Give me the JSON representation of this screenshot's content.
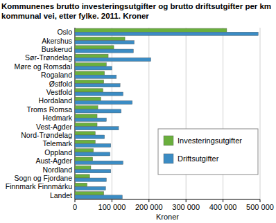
{
  "chart_data": {
    "type": "bar",
    "orientation": "horizontal",
    "title": "Kommunenes brutto investeringsutgifter og brutto driftsutgifter per km kommunal vei, etter fylke. 2011. Kroner",
    "x_label": "Kroner",
    "categories": [
      "Oslo",
      "Akershus",
      "Buskerud",
      "Sør-Trøndelag",
      "Møre og Romsdal",
      "Rogaland",
      "Østfold",
      "Vestfold",
      "Hordaland",
      "Troms Romsa",
      "Hedmark",
      "Vest-Agder",
      "Nord-Trøndelag",
      "Telemark",
      "Oppland",
      "Aust-Agder",
      "Nordland",
      "Sogn og Fjordane",
      "Finnmark Finnmárku",
      "Landet"
    ],
    "series": [
      {
        "name": "Investeringsutgifter",
        "color": "#6aaf3d",
        "values": [
          410000,
          135000,
          105000,
          90000,
          85000,
          80000,
          78000,
          76000,
          70000,
          62000,
          60000,
          60000,
          55000,
          55000,
          50000,
          48000,
          43000,
          40000,
          33000,
          78000
        ]
      },
      {
        "name": "Driftsutgifter",
        "color": "#3b8cc4",
        "values": [
          495000,
          160000,
          158000,
          205000,
          100000,
          112000,
          122000,
          130000,
          155000,
          125000,
          85000,
          118000,
          80000,
          97000,
          95000,
          130000,
          97000,
          85000,
          83000,
          128000
        ]
      }
    ],
    "xlim": [
      0,
      500000
    ],
    "xticks": [
      0,
      {
        "value": 100000,
        "label": "100 000"
      },
      {
        "value": 200000,
        "label": "200 000"
      },
      {
        "value": 300000,
        "label": "300 000"
      },
      {
        "value": 400000,
        "label": "400 000"
      },
      {
        "value": 500000,
        "label": "500 000"
      }
    ],
    "grid": true,
    "legend": "right"
  }
}
